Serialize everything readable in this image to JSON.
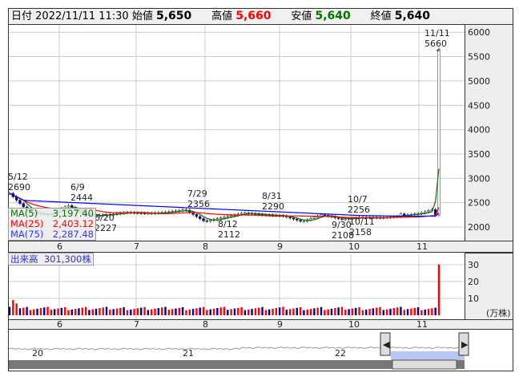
{
  "header": {
    "date_label": "日付",
    "date": "2022/11/11 11:30",
    "open_label": "始値",
    "open": "5,650",
    "high_label": "高値",
    "high": "5,660",
    "low_label": "安値",
    "low": "5,640",
    "close_label": "終値",
    "close": "5,640"
  },
  "colors": {
    "up": "#ff0000",
    "down": "#000099",
    "ma5": "#007700",
    "ma25": "#ff0000",
    "ma75": "#0000ff",
    "high": "#ff0000",
    "low": "#007700"
  },
  "legend": [
    {
      "label": "MA(5)",
      "value": "3,197.40"
    },
    {
      "label": "MA(25)",
      "value": "2,403.12"
    },
    {
      "label": "MA(75)",
      "value": "2,287.48"
    }
  ],
  "volume": {
    "label": "出来高",
    "value": "301,300株",
    "unit": "(万株)",
    "ticks": [
      "30",
      "20",
      "10"
    ]
  },
  "chart_data": {
    "type": "candlestick",
    "y_ticks": [
      "6000",
      "5500",
      "5000",
      "4500",
      "4000",
      "3500",
      "3000",
      "2500",
      "2000"
    ],
    "ylim": [
      1750,
      6200
    ],
    "x_ticks": [
      "6",
      "7",
      "8",
      "9",
      "10",
      "11"
    ],
    "annotations": [
      {
        "date": "5/12",
        "value": "2690"
      },
      {
        "date": "6/9",
        "value": "2444"
      },
      {
        "date": "6/20",
        "value": "2227"
      },
      {
        "date": "7/29",
        "value": "2356"
      },
      {
        "date": "8/12",
        "value": "2112"
      },
      {
        "date": "8/31",
        "value": "2290"
      },
      {
        "date": "9/30",
        "value": "2108"
      },
      {
        "date": "10/7",
        "value": "2256"
      },
      {
        "date": "10/11",
        "value": "2158"
      },
      {
        "date": "11/11",
        "value": "5660"
      }
    ],
    "price_path": [
      2690,
      2300,
      2250,
      2444,
      2227,
      2250,
      2300,
      2280,
      2300,
      2356,
      2112,
      2200,
      2290,
      2250,
      2230,
      2108,
      2256,
      2158,
      2200,
      2190,
      2220,
      3200,
      5650
    ],
    "volume_ticks": [
      30,
      20,
      10
    ],
    "last_volume": 30.13
  },
  "navigator": {
    "labels": [
      "20",
      "21",
      "22"
    ]
  }
}
